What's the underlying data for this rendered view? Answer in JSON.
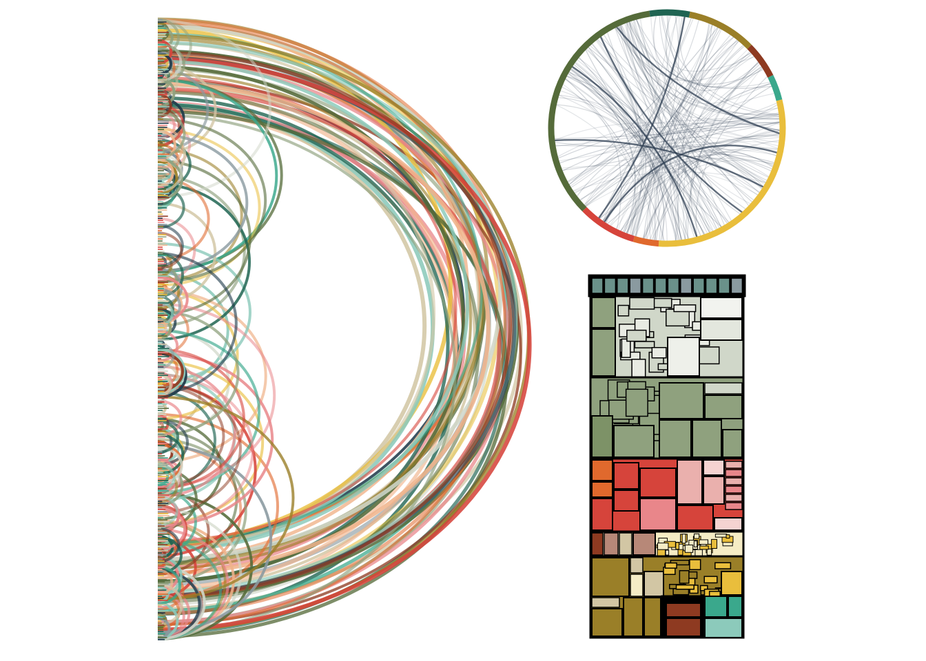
{
  "palette": {
    "dark_navy": "#1f3a4a",
    "slate": "#8a9aa0",
    "olive_green": "#556b3a",
    "sage": "#8fa17e",
    "pale_sage": "#d0d7c9",
    "teal_dark": "#1f6452",
    "teal": "#3aa88c",
    "mint": "#8ccabb",
    "brick_red": "#d6443b",
    "coral": "#e9868a",
    "pink": "#eab0ad",
    "orange": "#e0692d",
    "light_orange": "#f0b38a",
    "gold": "#e9be3c",
    "olive": "#9a7f28",
    "rust": "#8e3a21",
    "tan": "#d2c6a4",
    "taupe": "#b78878",
    "cream": "#f5ecc5",
    "chord_line": "#2e3e52",
    "outline": "#000000"
  },
  "ring_segments": [
    {
      "name": "teal_dark",
      "share": 0.055
    },
    {
      "name": "olive",
      "share": 0.095
    },
    {
      "name": "rust",
      "share": 0.05
    },
    {
      "name": "teal",
      "share": 0.035
    },
    {
      "name": "gold",
      "share": 0.3
    },
    {
      "name": "orange",
      "share": 0.035
    },
    {
      "name": "brick_red",
      "share": 0.08
    },
    {
      "name": "olive_green",
      "share": 0.35
    }
  ],
  "treemap_groups": [
    {
      "name": "teal-header",
      "share": 0.035
    },
    {
      "name": "pale-sage",
      "share": 0.145
    },
    {
      "name": "sage",
      "share": 0.14
    },
    {
      "name": "red",
      "share": 0.135
    },
    {
      "name": "mixed",
      "share": 0.12
    },
    {
      "name": "olive-teal",
      "share": 0.125
    }
  ]
}
